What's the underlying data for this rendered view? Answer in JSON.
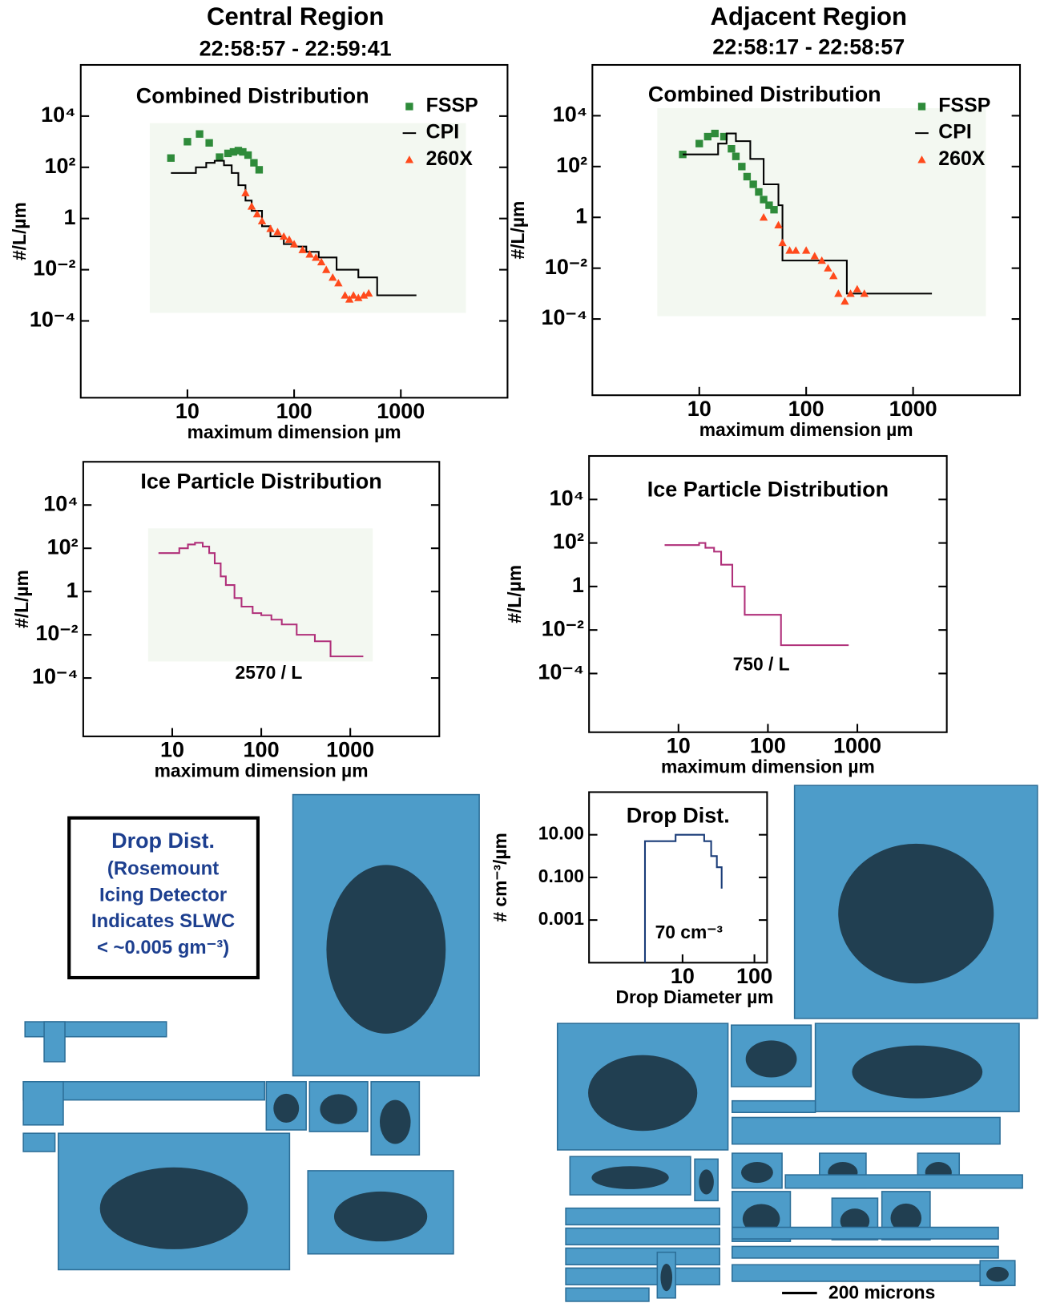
{
  "columns": [
    {
      "title": "Central Region",
      "subtitle": "22:58:57 - 22:59:41"
    },
    {
      "title": "Adjacent Region",
      "subtitle": "22:58:17 - 22:58:57"
    }
  ],
  "chart_data": [
    {
      "type": "line",
      "title": "Combined Distribution",
      "xlabel": "maximum dimension µm",
      "ylabel": "#/L/µm",
      "xscale": "log",
      "yscale": "log",
      "xlim": [
        1,
        10000
      ],
      "ylim": [
        1e-07,
        1000000
      ],
      "xticks": [
        10,
        100,
        1000
      ],
      "yticks": [
        {
          "value": 10000,
          "label": "10⁴"
        },
        {
          "value": 100,
          "label": "10²"
        },
        1,
        {
          "value": 0.01,
          "label": "10⁻²"
        },
        {
          "value": 0.0001,
          "label": "10⁻⁴"
        }
      ],
      "legend": "upper right",
      "series": [
        {
          "name": "FSSP",
          "color": "#2e8b3a",
          "marker": "square",
          "x": [
            7,
            10,
            13,
            16,
            20,
            24,
            27,
            30,
            33,
            37,
            42,
            47
          ],
          "values": [
            230,
            1000,
            2000,
            900,
            250,
            350,
            400,
            450,
            400,
            300,
            150,
            80
          ]
        },
        {
          "name": "CPI",
          "color": "#000000",
          "drawstyle": "steps-post",
          "x": [
            7,
            12,
            15,
            18,
            22,
            26,
            30,
            35,
            40,
            50,
            60,
            80,
            100,
            130,
            170,
            250,
            400,
            600,
            1400
          ],
          "values": [
            60,
            100,
            150,
            180,
            120,
            60,
            20,
            5,
            2,
            0.5,
            0.2,
            0.1,
            0.08,
            0.05,
            0.03,
            0.01,
            0.005,
            0.001,
            0.001
          ]
        },
        {
          "name": "260X",
          "color": "#ff4a1c",
          "marker": "triangle",
          "x": [
            35,
            40,
            45,
            50,
            60,
            70,
            80,
            90,
            100,
            120,
            140,
            160,
            180,
            200,
            230,
            260,
            300,
            330,
            360,
            400,
            450,
            500
          ],
          "values": [
            10,
            3,
            1.5,
            0.8,
            0.4,
            0.3,
            0.2,
            0.15,
            0.1,
            0.06,
            0.04,
            0.03,
            0.02,
            0.01,
            0.005,
            0.003,
            0.001,
            0.0007,
            0.001,
            0.0008,
            0.001,
            0.0012
          ]
        }
      ]
    },
    {
      "type": "line",
      "title": "Combined Distribution",
      "xlabel": "maximum dimension µm",
      "ylabel": "#/L/µm",
      "xscale": "log",
      "yscale": "log",
      "xlim": [
        1,
        10000
      ],
      "ylim": [
        1e-07,
        1000000
      ],
      "xticks": [
        10,
        100,
        1000
      ],
      "yticks": [
        {
          "value": 10000,
          "label": "10⁴"
        },
        {
          "value": 100,
          "label": "10²"
        },
        1,
        {
          "value": 0.01,
          "label": "10⁻²"
        },
        {
          "value": 0.0001,
          "label": "10⁻⁴"
        }
      ],
      "legend": "upper right",
      "series": [
        {
          "name": "FSSP",
          "color": "#2e8b3a",
          "marker": "square",
          "x": [
            7,
            10,
            12,
            14,
            17,
            20,
            22,
            25,
            28,
            32,
            36,
            40,
            45,
            50
          ],
          "values": [
            300,
            800,
            1500,
            2000,
            1500,
            500,
            250,
            100,
            40,
            20,
            10,
            5,
            3,
            2
          ]
        },
        {
          "name": "CPI",
          "color": "#000000",
          "drawstyle": "steps-post",
          "x": [
            7,
            12,
            15,
            18,
            22,
            30,
            40,
            55,
            60,
            230,
            240,
            1500
          ],
          "values": [
            300,
            300,
            800,
            2000,
            1000,
            200,
            20,
            3,
            0.02,
            0.02,
            0.001,
            0.001
          ]
        },
        {
          "name": "260X",
          "color": "#ff4a1c",
          "marker": "triangle",
          "x": [
            40,
            55,
            60,
            70,
            80,
            100,
            120,
            140,
            160,
            180,
            200,
            230,
            260,
            300,
            350
          ],
          "values": [
            1,
            0.5,
            0.1,
            0.05,
            0.05,
            0.05,
            0.03,
            0.02,
            0.01,
            0.005,
            0.001,
            0.0005,
            0.001,
            0.0015,
            0.001
          ]
        }
      ]
    },
    {
      "type": "line",
      "title": "Ice Particle Distribution",
      "xlabel": "maximum dimension µm",
      "ylabel": "#/L/µm",
      "annotation": "2570 / L",
      "xscale": "log",
      "yscale": "log",
      "xlim": [
        1,
        10000
      ],
      "ylim": [
        2e-07,
        1000000
      ],
      "xticks": [
        10,
        100,
        1000
      ],
      "yticks": [
        {
          "value": 10000,
          "label": "10⁴"
        },
        {
          "value": 100,
          "label": "10²"
        },
        1,
        {
          "value": 0.01,
          "label": "10⁻²"
        },
        {
          "value": 0.0001,
          "label": "10⁻⁴"
        }
      ],
      "series": [
        {
          "color": "#b0307a",
          "drawstyle": "steps-post",
          "x": [
            7,
            12,
            15,
            18,
            22,
            26,
            30,
            35,
            40,
            50,
            60,
            80,
            100,
            130,
            170,
            250,
            400,
            600,
            1400
          ],
          "values": [
            60,
            100,
            150,
            180,
            120,
            60,
            20,
            5,
            2,
            0.5,
            0.2,
            0.1,
            0.08,
            0.05,
            0.03,
            0.01,
            0.005,
            0.001,
            0.001
          ]
        }
      ]
    },
    {
      "type": "line",
      "title": "Ice Particle Distribution",
      "xlabel": "maximum dimension µm",
      "ylabel": "#/L/µm",
      "annotation": "750 / L",
      "xscale": "log",
      "yscale": "log",
      "xlim": [
        1,
        10000
      ],
      "ylim": [
        2e-07,
        1000000
      ],
      "xticks": [
        10,
        100,
        1000
      ],
      "yticks": [
        {
          "value": 10000,
          "label": "10⁴"
        },
        {
          "value": 100,
          "label": "10²"
        },
        1,
        {
          "value": 0.01,
          "label": "10⁻²"
        },
        {
          "value": 0.0001,
          "label": "10⁻⁴"
        }
      ],
      "series": [
        {
          "color": "#b0307a",
          "drawstyle": "steps-post",
          "x": [
            7,
            17,
            20,
            25,
            30,
            40,
            55,
            140,
            800
          ],
          "values": [
            80,
            100,
            60,
            40,
            10,
            1,
            0.05,
            0.002,
            0.002
          ]
        }
      ]
    },
    {
      "type": "line",
      "title": "Drop Dist.",
      "xlabel": "Drop Diameter µm",
      "ylabel": "# cm⁻³/µm",
      "annotation": "70 cm⁻³",
      "xscale": "log",
      "yscale": "log",
      "xlim": [
        0.5,
        150
      ],
      "ylim": [
        1e-05,
        1000
      ],
      "xticks": [
        10,
        100
      ],
      "yticks": [
        {
          "value": 10,
          "label": "10.00"
        },
        {
          "value": 0.1,
          "label": "0.100"
        },
        0.001
      ],
      "series": [
        {
          "color": "#1a3c78",
          "drawstyle": "steps-post",
          "x": [
            3,
            3,
            5,
            8,
            10,
            15,
            20,
            25,
            30,
            35,
            35
          ],
          "values": [
            1e-05,
            5,
            5,
            10,
            10,
            10,
            5,
            1,
            0.3,
            0.1,
            0.03
          ]
        }
      ]
    }
  ],
  "notes": {
    "box": [
      "Drop Dist.",
      "(Rosemount",
      "Icing Detector",
      "Indicates SLWC",
      "< ~0.005 gm⁻³)"
    ],
    "scale_bar": "200 microns"
  }
}
